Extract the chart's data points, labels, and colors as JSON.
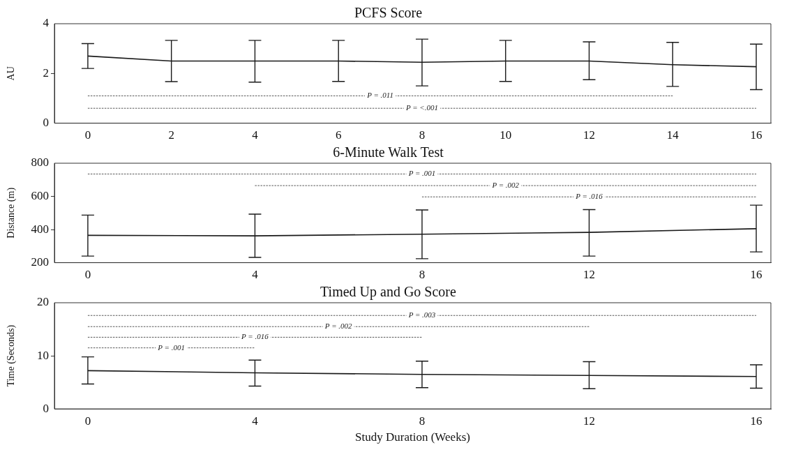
{
  "chart_data": [
    {
      "type": "line",
      "title": "PCFS Score",
      "ylabel": "AU",
      "x": [
        0,
        2,
        4,
        6,
        8,
        10,
        12,
        14,
        16
      ],
      "xlim": [
        -0.8,
        16.35
      ],
      "xticks": [
        0,
        2,
        4,
        6,
        8,
        10,
        12,
        14,
        16
      ],
      "ylim": [
        0,
        4
      ],
      "yticks": [
        0,
        2,
        4
      ],
      "grid": false,
      "marker": "none",
      "line_style": "solid",
      "series": [
        {
          "color": "#1a1a1a",
          "values": [
            2.7,
            2.5,
            2.5,
            2.5,
            2.45,
            2.5,
            2.5,
            2.35,
            2.27
          ],
          "errors": [
            [
              2.2,
              3.2
            ],
            [
              1.67,
              3.33
            ],
            [
              1.65,
              3.33
            ],
            [
              1.68,
              3.33
            ],
            [
              1.5,
              3.38
            ],
            [
              1.68,
              3.33
            ],
            [
              1.75,
              3.27
            ],
            [
              1.48,
              3.25
            ],
            [
              1.35,
              3.18
            ]
          ]
        },
        {
          "type": "line",
          "line_style": "dashed",
          "color": "#555555",
          "x": [
            0,
            14
          ],
          "values": [
            1.1,
            1.1
          ]
        },
        {
          "type": "line",
          "line_style": "dashed",
          "color": "#555555",
          "x": [
            0,
            16
          ],
          "values": [
            0.6,
            0.6
          ]
        }
      ],
      "annotations": [
        {
          "text": "P = .011",
          "x": 7,
          "y": 1.1
        },
        {
          "text": "P = <.001",
          "x": 8,
          "y": 0.6
        }
      ]
    },
    {
      "type": "line",
      "title": "6-Minute Walk Test",
      "ylabel": "Distance (m)",
      "x": [
        0,
        4,
        8,
        12,
        16
      ],
      "xlim": [
        -0.8,
        16.35
      ],
      "xticks": [
        0,
        4,
        8,
        12,
        16
      ],
      "ylim": [
        200,
        800
      ],
      "yticks": [
        200,
        400,
        600,
        800
      ],
      "grid": false,
      "marker": "none",
      "line_style": "solid",
      "series": [
        {
          "color": "#1a1a1a",
          "values": [
            365,
            362,
            372,
            383,
            405
          ],
          "errors": [
            [
              240,
              487
            ],
            [
              232,
              493
            ],
            [
              224,
              518
            ],
            [
              240,
              520
            ],
            [
              265,
              547
            ]
          ]
        },
        {
          "type": "line",
          "line_style": "dashed",
          "color": "#555555",
          "x": [
            0,
            16
          ],
          "values": [
            735,
            735
          ]
        },
        {
          "type": "line",
          "line_style": "dashed",
          "color": "#555555",
          "x": [
            4,
            16
          ],
          "values": [
            665,
            665
          ]
        },
        {
          "type": "line",
          "line_style": "dashed",
          "color": "#555555",
          "x": [
            8,
            16
          ],
          "values": [
            597,
            597
          ]
        }
      ],
      "annotations": [
        {
          "text": "P = .001",
          "x": 8,
          "y": 735
        },
        {
          "text": "P = .002",
          "x": 10,
          "y": 665
        },
        {
          "text": "P = .016",
          "x": 12,
          "y": 597
        }
      ]
    },
    {
      "type": "line",
      "title": "Timed Up and Go Score",
      "ylabel": "Time (Seconds)",
      "xlabel": "Study Duration (Weeks)",
      "x": [
        0,
        4,
        8,
        12,
        16
      ],
      "xlim": [
        -0.8,
        16.35
      ],
      "xticks": [
        0,
        4,
        8,
        12,
        16
      ],
      "ylim": [
        0,
        20
      ],
      "yticks": [
        0,
        10,
        20
      ],
      "grid": false,
      "marker": "none",
      "line_style": "solid",
      "series": [
        {
          "color": "#1a1a1a",
          "values": [
            7.2,
            6.8,
            6.5,
            6.3,
            6.1
          ],
          "errors": [
            [
              4.7,
              9.8
            ],
            [
              4.3,
              9.2
            ],
            [
              4.0,
              9.0
            ],
            [
              3.8,
              8.9
            ],
            [
              3.9,
              8.3
            ]
          ]
        },
        {
          "type": "line",
          "line_style": "dashed",
          "color": "#555555",
          "x": [
            0,
            16
          ],
          "values": [
            17.6,
            17.6
          ]
        },
        {
          "type": "line",
          "line_style": "dashed",
          "color": "#555555",
          "x": [
            0,
            12
          ],
          "values": [
            15.5,
            15.5
          ]
        },
        {
          "type": "line",
          "line_style": "dashed",
          "color": "#555555",
          "x": [
            0,
            8
          ],
          "values": [
            13.5,
            13.5
          ]
        },
        {
          "type": "line",
          "line_style": "dashed",
          "color": "#555555",
          "x": [
            0,
            4
          ],
          "values": [
            11.5,
            11.5
          ]
        }
      ],
      "annotations": [
        {
          "text": "P = .003",
          "x": 8,
          "y": 17.6
        },
        {
          "text": "P = .002",
          "x": 6,
          "y": 15.5
        },
        {
          "text": "P = .016",
          "x": 4,
          "y": 13.5
        },
        {
          "text": "P = .001",
          "x": 2,
          "y": 11.5
        }
      ]
    }
  ]
}
